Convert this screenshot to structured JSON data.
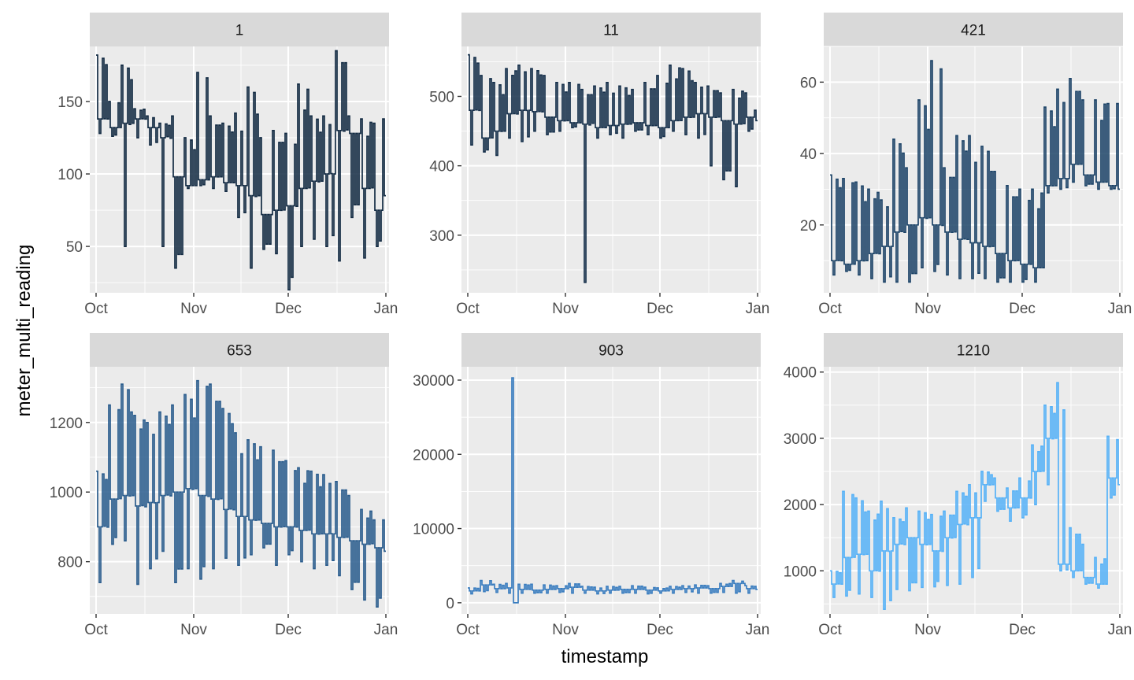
{
  "chart_data": {
    "type": "line",
    "facet_by": "meter_id",
    "xlabel": "timestamp",
    "ylabel": "meter_multi_reading",
    "x_range": [
      "2016-09-29",
      "2017-01-02"
    ],
    "x_ticks": [
      {
        "date": "2016-10-01",
        "label": "Oct"
      },
      {
        "date": "2016-11-01",
        "label": "Nov"
      },
      {
        "date": "2016-12-01",
        "label": "Dec"
      },
      {
        "date": "2017-01-01",
        "label": "Jan"
      }
    ],
    "grid": true,
    "panel_background": "#ebebeb",
    "strip_background": "#d9d9d9",
    "panels": [
      {
        "title": "1",
        "color": "#132b43",
        "ylim": [
          18,
          188
        ],
        "yticks": [
          50,
          100,
          150
        ],
        "x": [
          "2016-10-01",
          "2016-10-05",
          "2016-10-09",
          "2016-10-13",
          "2016-10-17",
          "2016-10-21",
          "2016-10-25",
          "2016-10-29",
          "2016-11-02",
          "2016-11-06",
          "2016-11-10",
          "2016-11-14",
          "2016-11-18",
          "2016-11-22",
          "2016-11-26",
          "2016-11-30",
          "2016-12-04",
          "2016-12-08",
          "2016-12-12",
          "2016-12-16",
          "2016-12-20",
          "2016-12-24",
          "2016-12-28",
          "2016-12-31"
        ],
        "min": [
          128,
          126,
          50,
          125,
          120,
          50,
          35,
          90,
          92,
          90,
          88,
          70,
          35,
          48,
          45,
          20,
          50,
          55,
          50,
          40,
          70,
          42,
          50,
          52
        ],
        "max": [
          182,
          150,
          175,
          145,
          140,
          135,
          140,
          125,
          170,
          140,
          135,
          142,
          160,
          125,
          130,
          128,
          162,
          140,
          140,
          185,
          140,
          138,
          135,
          138
        ],
        "typ": [
          138,
          132,
          135,
          138,
          132,
          125,
          98,
          92,
          96,
          98,
          94,
          92,
          85,
          72,
          75,
          78,
          90,
          95,
          100,
          130,
          128,
          90,
          75,
          85
        ]
      },
      {
        "title": "11",
        "color": "#152f4a",
        "ylim": [
          217,
          572
        ],
        "yticks": [
          300,
          400,
          500
        ],
        "x": [
          "2016-10-01",
          "2016-10-05",
          "2016-10-09",
          "2016-10-13",
          "2016-10-17",
          "2016-10-21",
          "2016-10-25",
          "2016-10-29",
          "2016-11-02",
          "2016-11-06",
          "2016-11-10",
          "2016-11-14",
          "2016-11-18",
          "2016-11-22",
          "2016-11-26",
          "2016-11-30",
          "2016-12-04",
          "2016-12-08",
          "2016-12-12",
          "2016-12-16",
          "2016-12-20",
          "2016-12-24",
          "2016-12-28",
          "2016-12-31"
        ],
        "min": [
          430,
          420,
          415,
          440,
          435,
          450,
          445,
          450,
          455,
          232,
          440,
          445,
          440,
          450,
          445,
          440,
          450,
          445,
          440,
          400,
          380,
          370,
          450,
          450
        ],
        "max": [
          560,
          530,
          520,
          540,
          545,
          540,
          530,
          520,
          520,
          510,
          515,
          520,
          515,
          510,
          520,
          530,
          545,
          540,
          520,
          515,
          505,
          510,
          505,
          480
        ],
        "typ": [
          480,
          440,
          450,
          475,
          480,
          478,
          470,
          465,
          462,
          460,
          455,
          458,
          460,
          462,
          458,
          455,
          465,
          470,
          475,
          470,
          465,
          460,
          470,
          465
        ]
      },
      {
        "title": "421",
        "color": "#1d4468",
        "ylim": [
          1,
          70
        ],
        "yticks": [
          20,
          40,
          60
        ],
        "x": [
          "2016-10-01",
          "2016-10-05",
          "2016-10-09",
          "2016-10-13",
          "2016-10-17",
          "2016-10-21",
          "2016-10-25",
          "2016-10-29",
          "2016-11-02",
          "2016-11-06",
          "2016-11-10",
          "2016-11-14",
          "2016-11-18",
          "2016-11-22",
          "2016-11-26",
          "2016-11-30",
          "2016-12-04",
          "2016-12-08",
          "2016-12-12",
          "2016-12-16",
          "2016-12-20",
          "2016-12-24",
          "2016-12-28",
          "2016-12-31"
        ],
        "min": [
          6,
          7,
          6,
          5,
          4,
          4,
          4,
          8,
          7,
          6,
          5,
          5,
          5,
          4,
          4,
          4,
          4,
          29,
          30,
          32,
          31,
          30,
          30,
          29
        ],
        "max": [
          34,
          33,
          32,
          30,
          27,
          44,
          36,
          55,
          66,
          36,
          45,
          45,
          42,
          35,
          31,
          30,
          30,
          53,
          58,
          61,
          55,
          55,
          54,
          54
        ],
        "typ": [
          10,
          9,
          10,
          12,
          14,
          18,
          20,
          22,
          20,
          18,
          16,
          15,
          14,
          12,
          10,
          9,
          8,
          31,
          33,
          37,
          34,
          32,
          31,
          30
        ]
      },
      {
        "title": "653",
        "color": "#2a5c8d",
        "ylim": [
          650,
          1360
        ],
        "yticks": [
          800,
          1000,
          1200
        ],
        "x": [
          "2016-10-01",
          "2016-10-05",
          "2016-10-09",
          "2016-10-13",
          "2016-10-17",
          "2016-10-21",
          "2016-10-25",
          "2016-10-29",
          "2016-11-02",
          "2016-11-06",
          "2016-11-10",
          "2016-11-14",
          "2016-11-18",
          "2016-11-22",
          "2016-11-26",
          "2016-11-30",
          "2016-12-04",
          "2016-12-08",
          "2016-12-12",
          "2016-12-16",
          "2016-12-20",
          "2016-12-24",
          "2016-12-28",
          "2016-12-31"
        ],
        "min": [
          740,
          850,
          860,
          735,
          780,
          830,
          740,
          780,
          750,
          780,
          810,
          790,
          820,
          840,
          790,
          820,
          800,
          780,
          790,
          760,
          720,
          690,
          670,
          700
        ],
        "max": [
          1060,
          1250,
          1310,
          1220,
          1200,
          1230,
          1250,
          1280,
          1320,
          1310,
          1240,
          1170,
          1150,
          1130,
          1120,
          1090,
          1070,
          1060,
          1050,
          1030,
          990,
          950,
          920,
          920
        ],
        "typ": [
          900,
          980,
          990,
          960,
          970,
          990,
          1000,
          1010,
          990,
          980,
          950,
          930,
          920,
          910,
          900,
          900,
          890,
          880,
          880,
          870,
          860,
          850,
          840,
          830
        ]
      },
      {
        "title": "903",
        "color": "#3a7dbf",
        "ylim": [
          -1500,
          31800
        ],
        "yticks": [
          0,
          10000,
          20000,
          30000
        ],
        "x": [
          "2016-10-01",
          "2016-10-05",
          "2016-10-09",
          "2016-10-13",
          "2016-10-15",
          "2016-10-17",
          "2016-10-21",
          "2016-10-25",
          "2016-10-29",
          "2016-11-02",
          "2016-11-06",
          "2016-11-10",
          "2016-11-14",
          "2016-11-18",
          "2016-11-22",
          "2016-11-26",
          "2016-11-30",
          "2016-12-04",
          "2016-12-08",
          "2016-12-12",
          "2016-12-16",
          "2016-12-20",
          "2016-12-24",
          "2016-12-28",
          "2016-12-31"
        ],
        "min": [
          1200,
          1500,
          1400,
          1300,
          0,
          1300,
          1300,
          1300,
          1400,
          1300,
          1300,
          1200,
          1300,
          1300,
          1300,
          1200,
          1300,
          1300,
          1400,
          1300,
          1300,
          1400,
          1300,
          1300,
          1300
        ],
        "max": [
          2000,
          3000,
          2500,
          2600,
          30300,
          2500,
          2500,
          2400,
          2300,
          2600,
          2200,
          2100,
          2200,
          2200,
          2300,
          2100,
          2000,
          2200,
          2300,
          2400,
          2300,
          2600,
          3000,
          2300,
          2200
        ],
        "typ": [
          1600,
          2400,
          1900,
          2000,
          0,
          1800,
          1700,
          1800,
          1900,
          2100,
          1700,
          1600,
          1700,
          1800,
          1800,
          1700,
          1600,
          1800,
          1900,
          2000,
          1900,
          2200,
          2600,
          1900,
          1800
        ]
      },
      {
        "title": "1210",
        "color": "#56b1f7",
        "ylim": [
          350,
          4080
        ],
        "yticks": [
          1000,
          2000,
          3000,
          4000
        ],
        "x": [
          "2016-10-01",
          "2016-10-05",
          "2016-10-09",
          "2016-10-13",
          "2016-10-17",
          "2016-10-21",
          "2016-10-25",
          "2016-10-29",
          "2016-11-02",
          "2016-11-06",
          "2016-11-10",
          "2016-11-14",
          "2016-11-18",
          "2016-11-22",
          "2016-11-26",
          "2016-11-30",
          "2016-12-04",
          "2016-12-08",
          "2016-12-12",
          "2016-12-16",
          "2016-12-20",
          "2016-12-24",
          "2016-12-28",
          "2016-12-31"
        ],
        "min": [
          600,
          620,
          650,
          600,
          420,
          720,
          700,
          750,
          760,
          780,
          800,
          900,
          2050,
          1900,
          1750,
          1800,
          2000,
          2300,
          1000,
          900,
          800,
          740,
          2100,
          2100
        ],
        "max": [
          1000,
          2200,
          2100,
          1900,
          2050,
          1800,
          1950,
          1900,
          1850,
          1900,
          2200,
          2300,
          2500,
          2400,
          2250,
          2400,
          2900,
          3500,
          3840,
          1650,
          1400,
          1200,
          3030,
          2980
        ],
        "typ": [
          800,
          1200,
          1250,
          1000,
          1300,
          1400,
          1500,
          1400,
          1300,
          1500,
          1700,
          1800,
          2300,
          2100,
          1950,
          2100,
          2500,
          3000,
          1100,
          1000,
          900,
          800,
          2400,
          2300
        ]
      }
    ]
  }
}
